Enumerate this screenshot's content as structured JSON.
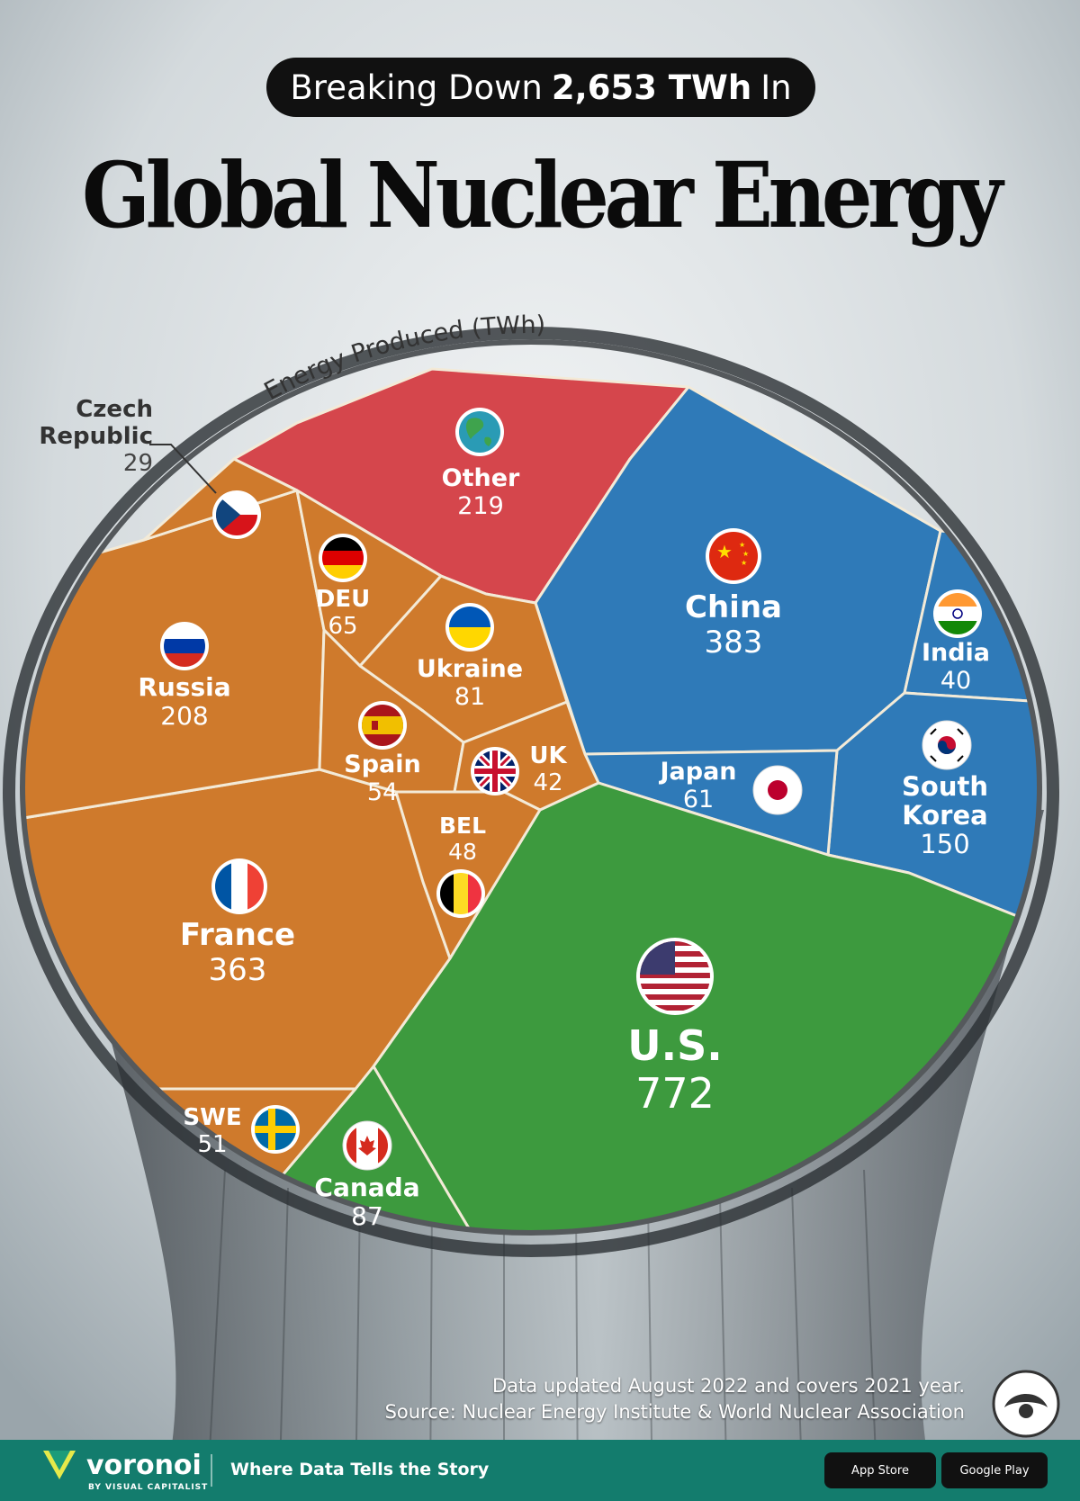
{
  "header": {
    "pill_pre": "Breaking Down",
    "pill_bold": "2,653 TWh",
    "pill_post": "In",
    "title": "Global Nuclear Energy",
    "arc_label": "Energy Produced (TWh)"
  },
  "chart_data": {
    "type": "voronoi",
    "title": "Global Nuclear Energy",
    "subtitle": "Breaking Down 2,653 TWh In",
    "unit": "TWh",
    "total": 2653,
    "series": [
      {
        "name": "U.S.",
        "value": 772,
        "group": "green",
        "flag": "us-flag"
      },
      {
        "name": "Canada",
        "value": 87,
        "group": "green",
        "flag": "canada-flag"
      },
      {
        "name": "China",
        "value": 383,
        "group": "blue",
        "flag": "china-flag"
      },
      {
        "name": "South Korea",
        "value": 150,
        "group": "blue",
        "flag": "south-korea-flag"
      },
      {
        "name": "Japan",
        "value": 61,
        "group": "blue",
        "flag": "japan-flag"
      },
      {
        "name": "India",
        "value": 40,
        "group": "blue",
        "flag": "india-flag"
      },
      {
        "name": "France",
        "value": 363,
        "group": "orange",
        "flag": "france-flag"
      },
      {
        "name": "Russia",
        "value": 208,
        "group": "orange",
        "flag": "russia-flag"
      },
      {
        "name": "Ukraine",
        "value": 81,
        "group": "orange",
        "flag": "ukraine-flag"
      },
      {
        "name": "DEU",
        "value": 65,
        "group": "orange",
        "flag": "germany-flag"
      },
      {
        "name": "Spain",
        "value": 54,
        "group": "orange",
        "flag": "spain-flag"
      },
      {
        "name": "SWE",
        "value": 51,
        "group": "orange",
        "flag": "sweden-flag"
      },
      {
        "name": "BEL",
        "value": 48,
        "group": "orange",
        "flag": "belgium-flag"
      },
      {
        "name": "UK",
        "value": 42,
        "group": "orange",
        "flag": "uk-flag"
      },
      {
        "name": "Czech Republic",
        "value": 29,
        "group": "orange",
        "flag": "czech-flag"
      },
      {
        "name": "Other",
        "value": 219,
        "group": "red",
        "flag": "globe-icon"
      }
    ],
    "colors": {
      "green": "#3d9a3e",
      "blue": "#2f7ab8",
      "orange": "#cf7a2c",
      "red": "#d9444c"
    }
  },
  "labels": {
    "us": {
      "name": "U.S.",
      "value": "772"
    },
    "canada": {
      "name": "Canada",
      "value": "87"
    },
    "china": {
      "name": "China",
      "value": "383"
    },
    "south_korea": {
      "name1": "South",
      "name2": "Korea",
      "value": "150"
    },
    "japan": {
      "name": "Japan",
      "value": "61"
    },
    "india": {
      "name": "India",
      "value": "40"
    },
    "france": {
      "name": "France",
      "value": "363"
    },
    "russia": {
      "name": "Russia",
      "value": "208"
    },
    "ukraine": {
      "name": "Ukraine",
      "value": "81"
    },
    "deu": {
      "name": "DEU",
      "value": "65"
    },
    "spain": {
      "name": "Spain",
      "value": "54"
    },
    "swe": {
      "name": "SWE",
      "value": "51"
    },
    "bel": {
      "name": "BEL",
      "value": "48"
    },
    "uk": {
      "name": "UK",
      "value": "42"
    },
    "czech": {
      "name1": "Czech",
      "name2": "Republic",
      "value": "29"
    },
    "other": {
      "name": "Other",
      "value": "219"
    }
  },
  "source": {
    "line1": "Data updated August 2022 and covers 2021 year.",
    "line2": "Source: Nuclear Energy Institute & World Nuclear Association"
  },
  "footer": {
    "brand": "voronoi",
    "brand_sub": "BY VISUAL CAPITALIST",
    "tagline": "Where Data Tells the Story",
    "app_store": "App Store",
    "google_play": "Google Play"
  }
}
